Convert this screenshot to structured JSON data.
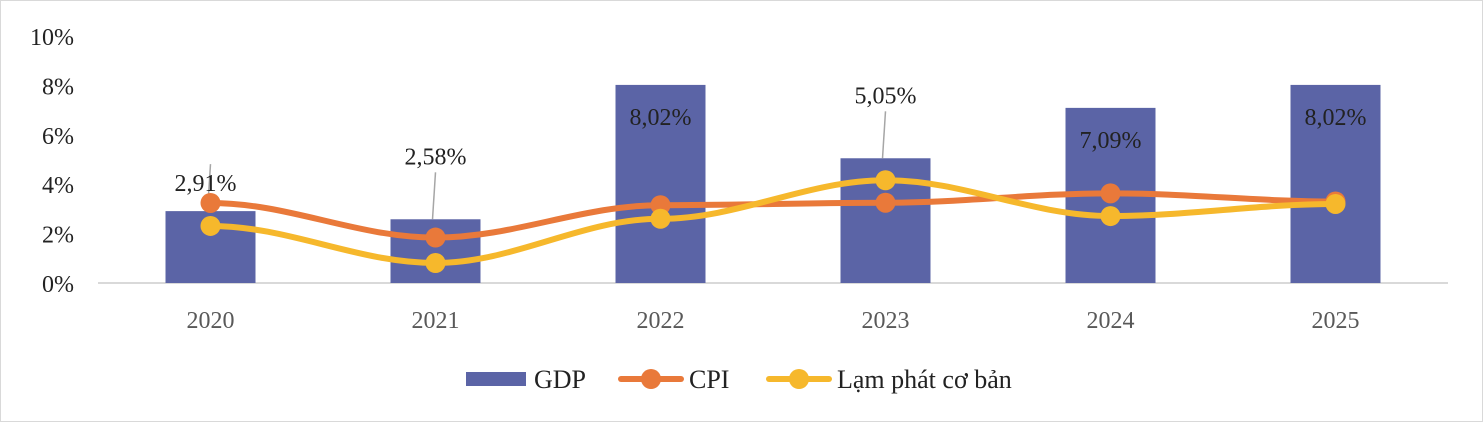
{
  "chart_data": {
    "type": "bar",
    "title": "",
    "xlabel": "",
    "ylabel": "",
    "ylim": [
      0,
      10
    ],
    "y_ticks": [
      "0%",
      "2%",
      "4%",
      "6%",
      "8%",
      "10%"
    ],
    "y_tick_values": [
      0,
      2,
      4,
      6,
      8,
      10
    ],
    "categories": [
      "2020",
      "2021",
      "2022",
      "2023",
      "2024",
      "2025"
    ],
    "grid": false,
    "legend_position": "bottom",
    "series": [
      {
        "name": "GDP",
        "kind": "bar",
        "color": "#5b64a6",
        "values": [
          2.91,
          2.58,
          8.02,
          5.05,
          7.09,
          8.02
        ],
        "labels": [
          "2,91%",
          "2,58%",
          "8,02%",
          "5,05%",
          "7,09%",
          "8,02%"
        ]
      },
      {
        "name": "CPI",
        "kind": "line",
        "color": "#e9793a",
        "values": [
          3.24,
          1.84,
          3.15,
          3.25,
          3.63,
          3.3
        ]
      },
      {
        "name": "Lạm phát cơ bản",
        "kind": "line",
        "color": "#f6b82c",
        "values": [
          2.31,
          0.81,
          2.6,
          4.16,
          2.71,
          3.2
        ]
      }
    ]
  }
}
